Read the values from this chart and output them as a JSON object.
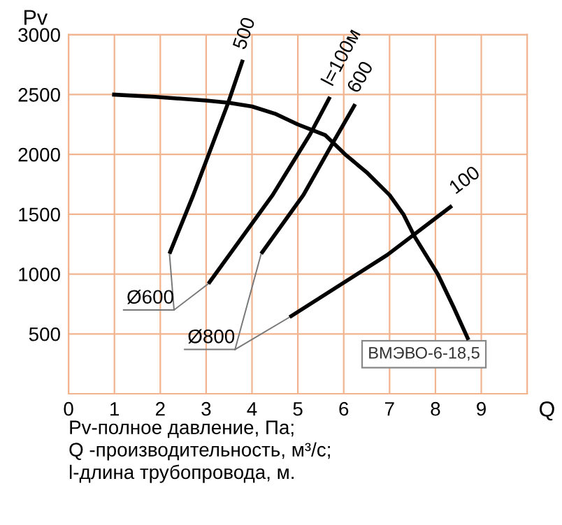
{
  "chart_data": {
    "type": "line",
    "xlabel": "Q",
    "ylabel": "Pv",
    "xlim": [
      0,
      10
    ],
    "ylim": [
      0,
      3000
    ],
    "xticks": [
      0,
      1,
      2,
      3,
      4,
      5,
      6,
      7,
      8,
      9
    ],
    "yticks": [
      500,
      1000,
      1500,
      2000,
      2500,
      3000
    ],
    "grid": true,
    "line_style": "solid",
    "marker": "none",
    "series": [
      {
        "name": "ВМЭВО-6-18,5",
        "color": "#000000",
        "x": [
          0.95,
          1.9,
          3.0,
          3.5,
          4.0,
          4.5,
          5.0,
          5.6,
          6.03,
          6.5,
          7.0,
          7.3,
          7.55,
          8.05,
          8.4,
          8.72
        ],
        "values": [
          2500,
          2480,
          2450,
          2430,
          2400,
          2340,
          2250,
          2160,
          2000,
          1850,
          1660,
          1500,
          1310,
          1000,
          720,
          450
        ]
      },
      {
        "name": "500",
        "color": "#000000",
        "x": [
          2.2,
          2.72,
          3.48,
          3.8
        ],
        "values": [
          1170,
          1660,
          2430,
          2790
        ]
      },
      {
        "name": "l=100м",
        "color": "#000000",
        "x": [
          3.05,
          4.45,
          5.27,
          5.7
        ],
        "values": [
          920,
          1660,
          2170,
          2480
        ]
      },
      {
        "name": "600",
        "color": "#000000",
        "x": [
          4.2,
          5.12,
          5.77,
          6.25
        ],
        "values": [
          1170,
          1660,
          2100,
          2420
        ]
      },
      {
        "name": "100",
        "color": "#000000",
        "x": [
          4.82,
          6.95,
          8.36
        ],
        "values": [
          640,
          1160,
          1570
        ]
      }
    ],
    "annotations": [
      {
        "text": "Ø600",
        "x": 2.2,
        "y": 1170
      },
      {
        "text": "Ø800",
        "x": 4.2,
        "y": 1170
      },
      "Pv-полное давление, Па;",
      "Q -производительность, м³/с;",
      "l-длина трубопровода, м."
    ]
  }
}
